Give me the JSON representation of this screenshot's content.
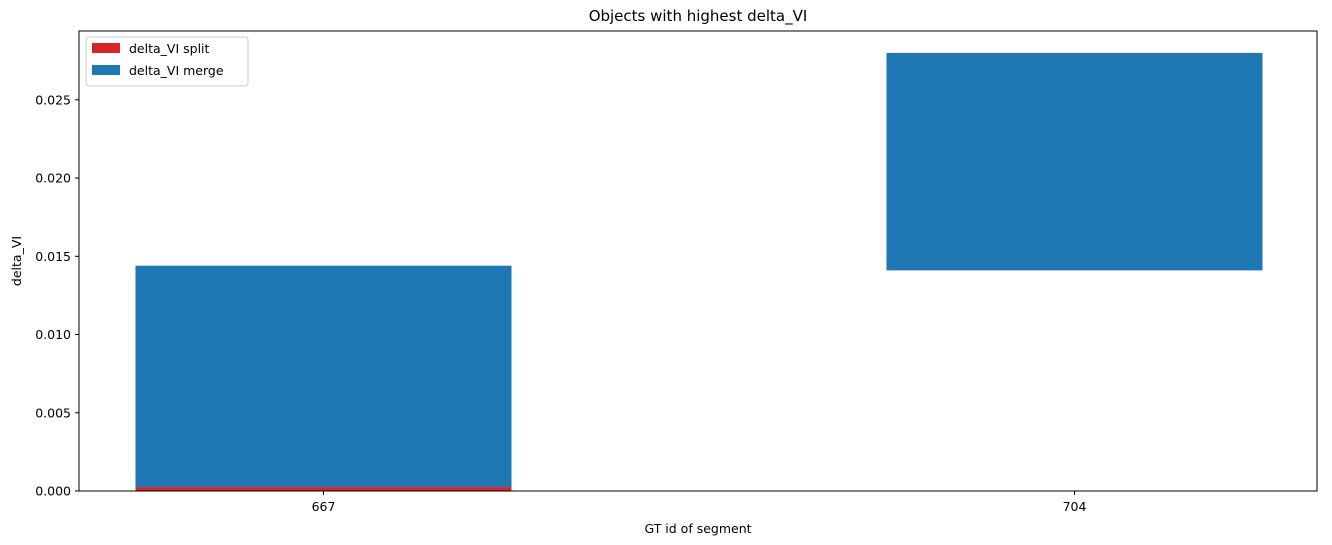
{
  "chart_data": {
    "type": "bar",
    "title": "Objects with highest delta_VI",
    "xlabel": "GT id of segment",
    "ylabel": "delta_VI",
    "categories": [
      "667",
      "704"
    ],
    "series": [
      {
        "name": "delta_VI split",
        "color": "#d62728",
        "values": [
          0.00025,
          0.0
        ],
        "bottoms": [
          0.0,
          0.0
        ]
      },
      {
        "name": "delta_VI merge",
        "color": "#1f77b4",
        "values": [
          0.01415,
          0.0139
        ],
        "bottoms": [
          0.00025,
          0.0141
        ]
      }
    ],
    "ylim": [
      0,
      0.0294
    ],
    "yticks": [
      "0.000",
      "0.005",
      "0.010",
      "0.015",
      "0.020",
      "0.025"
    ],
    "ytick_values": [
      0,
      0.005,
      0.01,
      0.015,
      0.02,
      0.025
    ],
    "grid": false,
    "legend_position": "upper-left"
  }
}
